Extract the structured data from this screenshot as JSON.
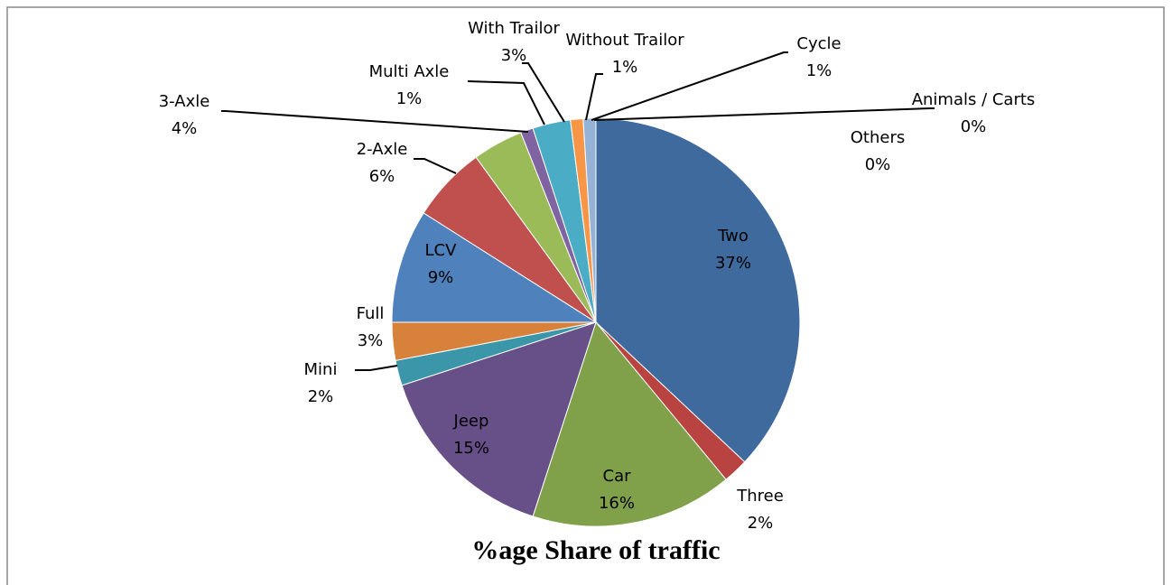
{
  "chart_data": {
    "type": "pie",
    "title": "%age Share of traffic",
    "categories": [
      "Two",
      "Three",
      "Car",
      "Jeep",
      "Mini",
      "Full",
      "LCV",
      "2-Axle",
      "3-Axle",
      "Multi Axle",
      "With Trailor",
      "Without Trailor",
      "Cycle",
      "Animals / Carts",
      "Others"
    ],
    "values": [
      37,
      2,
      16,
      15,
      2,
      3,
      9,
      6,
      4,
      1,
      3,
      1,
      1,
      0,
      0
    ],
    "value_labels": [
      "37%",
      "2%",
      "16%",
      "15%",
      "2%",
      "3%",
      "9%",
      "6%",
      "4%",
      "1%",
      "3%",
      "1%",
      "1%",
      "0%",
      "0%"
    ],
    "colors": [
      "#3f6a9e",
      "#b84340",
      "#80a04a",
      "#674f88",
      "#3b96aa",
      "#d8813b",
      "#4f81bd",
      "#c0504d",
      "#9bbb59",
      "#8064a2",
      "#4bacc6",
      "#f79646",
      "#95b3d7",
      "#d99694",
      "#c3d69b"
    ]
  }
}
